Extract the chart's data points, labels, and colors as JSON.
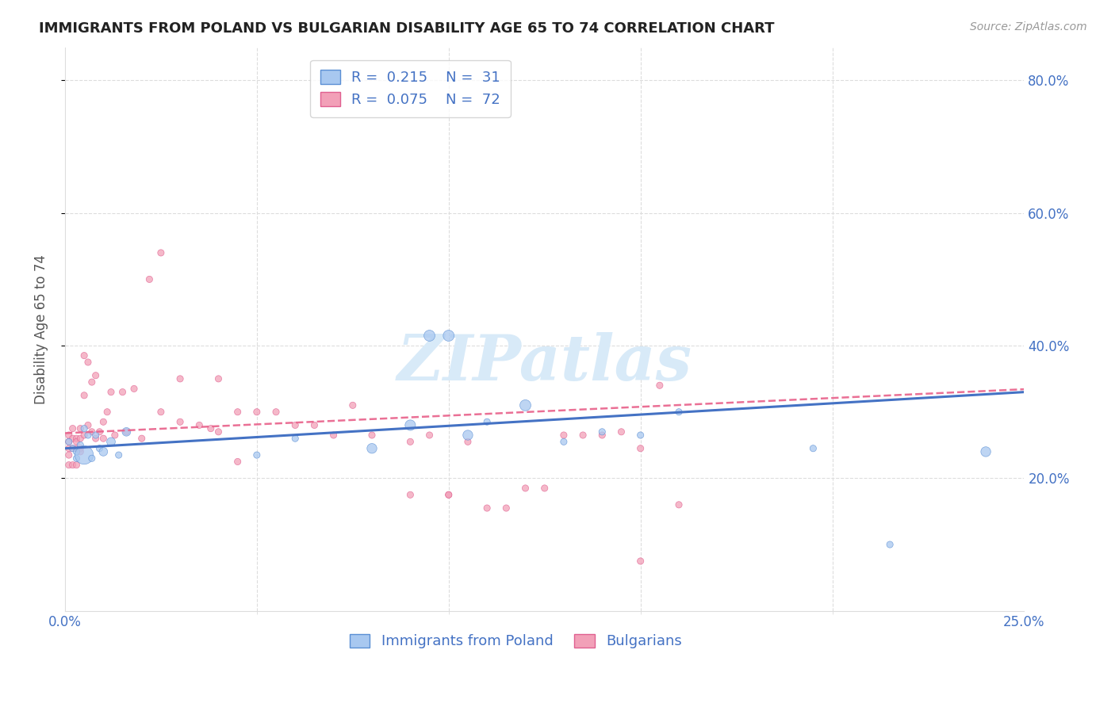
{
  "title": "IMMIGRANTS FROM POLAND VS BULGARIAN DISABILITY AGE 65 TO 74 CORRELATION CHART",
  "source": "Source: ZipAtlas.com",
  "ylabel": "Disability Age 65 to 74",
  "x_min": 0.0,
  "x_max": 0.25,
  "y_min": 0.0,
  "y_max": 0.85,
  "color_poland": "#A8C8F0",
  "color_bulgarian": "#F2A0B8",
  "color_poland_edge": "#5B8FD4",
  "color_bulgarian_edge": "#E06090",
  "color_poland_line": "#4472C4",
  "color_bulgarian_line": "#E8608A",
  "color_axis": "#4472C4",
  "watermark": "ZIPatlas",
  "watermark_color": "#D8EAF8",
  "background_color": "#FFFFFF",
  "grid_color": "#DDDDDD",
  "poland_x": [
    0.001,
    0.002,
    0.003,
    0.003,
    0.004,
    0.005,
    0.005,
    0.006,
    0.007,
    0.008,
    0.009,
    0.01,
    0.012,
    0.014,
    0.016,
    0.05,
    0.06,
    0.08,
    0.09,
    0.095,
    0.1,
    0.105,
    0.11,
    0.12,
    0.13,
    0.14,
    0.15,
    0.16,
    0.195,
    0.215,
    0.24
  ],
  "poland_y": [
    0.255,
    0.245,
    0.24,
    0.23,
    0.25,
    0.235,
    0.275,
    0.265,
    0.23,
    0.265,
    0.245,
    0.24,
    0.255,
    0.235,
    0.27,
    0.235,
    0.26,
    0.245,
    0.28,
    0.415,
    0.415,
    0.265,
    0.285,
    0.31,
    0.255,
    0.27,
    0.265,
    0.3,
    0.245,
    0.1,
    0.24
  ],
  "poland_sizes": [
    35,
    35,
    35,
    35,
    35,
    280,
    35,
    35,
    35,
    35,
    35,
    60,
    60,
    35,
    60,
    35,
    35,
    80,
    90,
    100,
    100,
    80,
    35,
    100,
    35,
    35,
    35,
    35,
    35,
    35,
    80
  ],
  "bulgaria_x": [
    0.001,
    0.001,
    0.001,
    0.001,
    0.001,
    0.002,
    0.002,
    0.002,
    0.002,
    0.003,
    0.003,
    0.003,
    0.003,
    0.004,
    0.004,
    0.004,
    0.004,
    0.005,
    0.005,
    0.005,
    0.006,
    0.006,
    0.007,
    0.007,
    0.008,
    0.008,
    0.009,
    0.01,
    0.01,
    0.011,
    0.012,
    0.013,
    0.015,
    0.016,
    0.018,
    0.02,
    0.022,
    0.025,
    0.025,
    0.03,
    0.035,
    0.038,
    0.04,
    0.04,
    0.045,
    0.05,
    0.055,
    0.06,
    0.065,
    0.07,
    0.075,
    0.08,
    0.09,
    0.095,
    0.1,
    0.1,
    0.105,
    0.11,
    0.115,
    0.12,
    0.125,
    0.13,
    0.135,
    0.14,
    0.145,
    0.15,
    0.155,
    0.16,
    0.03,
    0.045,
    0.09,
    0.15
  ],
  "bulgaria_y": [
    0.265,
    0.255,
    0.245,
    0.235,
    0.22,
    0.275,
    0.26,
    0.245,
    0.22,
    0.26,
    0.255,
    0.245,
    0.22,
    0.275,
    0.26,
    0.245,
    0.24,
    0.385,
    0.325,
    0.265,
    0.375,
    0.28,
    0.345,
    0.27,
    0.355,
    0.26,
    0.27,
    0.285,
    0.26,
    0.3,
    0.33,
    0.265,
    0.33,
    0.27,
    0.335,
    0.26,
    0.5,
    0.54,
    0.3,
    0.285,
    0.28,
    0.275,
    0.27,
    0.35,
    0.3,
    0.3,
    0.3,
    0.28,
    0.28,
    0.265,
    0.31,
    0.265,
    0.255,
    0.265,
    0.175,
    0.175,
    0.255,
    0.155,
    0.155,
    0.185,
    0.185,
    0.265,
    0.265,
    0.265,
    0.27,
    0.245,
    0.34,
    0.16,
    0.35,
    0.225,
    0.175,
    0.075
  ],
  "bulgaria_sizes": [
    35,
    35,
    35,
    35,
    35,
    35,
    35,
    35,
    35,
    35,
    35,
    35,
    35,
    35,
    35,
    35,
    35,
    35,
    35,
    35,
    35,
    35,
    35,
    35,
    35,
    35,
    35,
    35,
    35,
    35,
    35,
    35,
    35,
    35,
    35,
    35,
    35,
    35,
    35,
    35,
    35,
    35,
    35,
    35,
    35,
    35,
    35,
    35,
    35,
    35,
    35,
    35,
    35,
    35,
    35,
    35,
    35,
    35,
    35,
    35,
    35,
    35,
    35,
    35,
    35,
    35,
    35,
    35,
    35,
    35,
    35,
    35
  ]
}
